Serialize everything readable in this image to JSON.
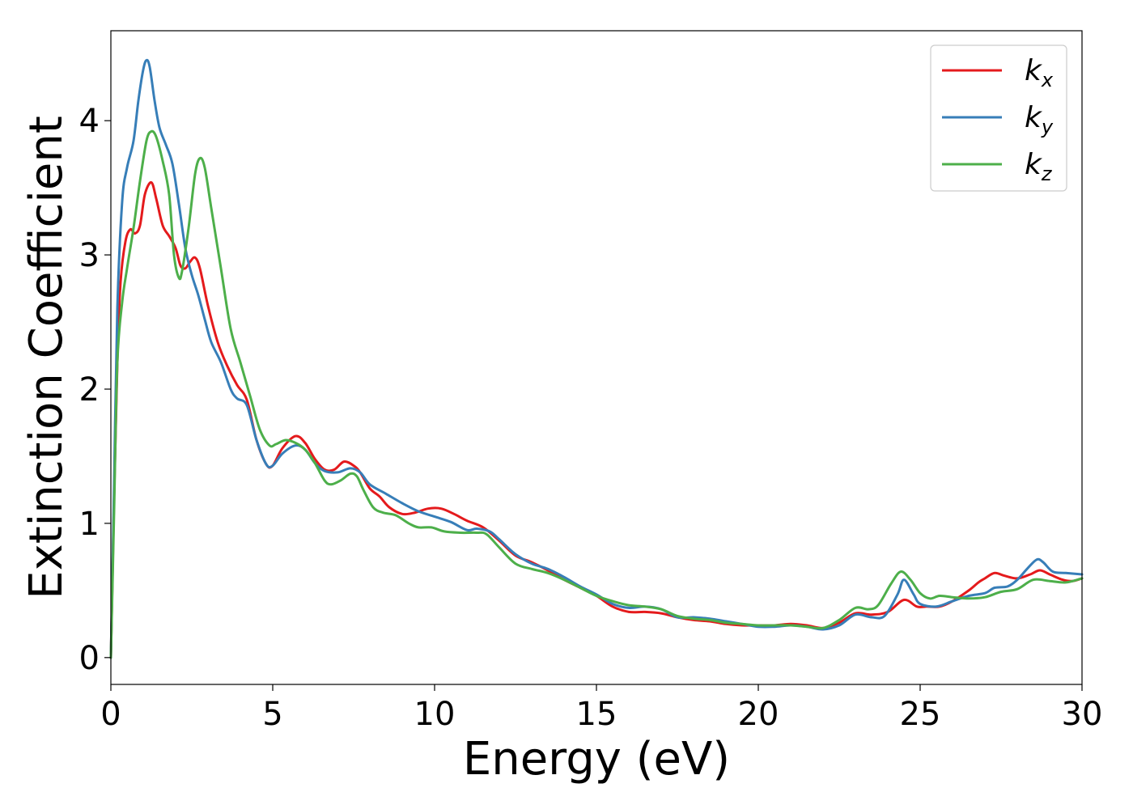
{
  "chart_data": {
    "type": "line",
    "xlabel": "Energy (eV)",
    "ylabel": "Extinction Coefficient",
    "xlim": [
      0,
      30
    ],
    "ylim": [
      -0.2,
      4.67
    ],
    "xticks": [
      0,
      5,
      10,
      15,
      20,
      25,
      30
    ],
    "yticks": [
      0,
      1,
      2,
      3,
      4
    ],
    "grid": false,
    "legend_position": "top-right",
    "series": [
      {
        "name": "k",
        "subscript": "x",
        "color": "#e41a1c",
        "points": [
          [
            0,
            0
          ],
          [
            0.1,
            1.2
          ],
          [
            0.2,
            2.2
          ],
          [
            0.3,
            2.8
          ],
          [
            0.45,
            3.1
          ],
          [
            0.6,
            3.19
          ],
          [
            0.75,
            3.16
          ],
          [
            0.9,
            3.22
          ],
          [
            1.05,
            3.45
          ],
          [
            1.25,
            3.54
          ],
          [
            1.4,
            3.42
          ],
          [
            1.6,
            3.22
          ],
          [
            1.8,
            3.14
          ],
          [
            2.0,
            3.05
          ],
          [
            2.15,
            2.92
          ],
          [
            2.3,
            2.9
          ],
          [
            2.45,
            2.95
          ],
          [
            2.6,
            2.98
          ],
          [
            2.75,
            2.9
          ],
          [
            3.0,
            2.62
          ],
          [
            3.3,
            2.35
          ],
          [
            3.6,
            2.17
          ],
          [
            3.9,
            2.03
          ],
          [
            4.2,
            1.92
          ],
          [
            4.5,
            1.62
          ],
          [
            4.8,
            1.44
          ],
          [
            5.0,
            1.43
          ],
          [
            5.3,
            1.56
          ],
          [
            5.7,
            1.65
          ],
          [
            6.0,
            1.6
          ],
          [
            6.3,
            1.48
          ],
          [
            6.6,
            1.4
          ],
          [
            6.9,
            1.4
          ],
          [
            7.2,
            1.46
          ],
          [
            7.5,
            1.43
          ],
          [
            7.7,
            1.38
          ],
          [
            8.0,
            1.26
          ],
          [
            8.3,
            1.2
          ],
          [
            8.6,
            1.12
          ],
          [
            9.0,
            1.07
          ],
          [
            9.4,
            1.08
          ],
          [
            9.8,
            1.11
          ],
          [
            10.2,
            1.11
          ],
          [
            10.6,
            1.07
          ],
          [
            11.0,
            1.02
          ],
          [
            11.5,
            0.97
          ],
          [
            12.0,
            0.87
          ],
          [
            12.5,
            0.76
          ],
          [
            13.0,
            0.71
          ],
          [
            13.5,
            0.65
          ],
          [
            14.0,
            0.58
          ],
          [
            14.5,
            0.52
          ],
          [
            15.0,
            0.46
          ],
          [
            15.5,
            0.38
          ],
          [
            16.0,
            0.34
          ],
          [
            16.5,
            0.34
          ],
          [
            17.0,
            0.33
          ],
          [
            17.5,
            0.3
          ],
          [
            18.0,
            0.28
          ],
          [
            18.5,
            0.27
          ],
          [
            19.0,
            0.25
          ],
          [
            19.5,
            0.24
          ],
          [
            20.0,
            0.24
          ],
          [
            20.5,
            0.24
          ],
          [
            21.0,
            0.25
          ],
          [
            21.5,
            0.24
          ],
          [
            22.0,
            0.22
          ],
          [
            22.5,
            0.26
          ],
          [
            23.0,
            0.33
          ],
          [
            23.5,
            0.32
          ],
          [
            24.0,
            0.34
          ],
          [
            24.5,
            0.43
          ],
          [
            24.9,
            0.38
          ],
          [
            25.2,
            0.38
          ],
          [
            25.6,
            0.38
          ],
          [
            26.0,
            0.42
          ],
          [
            26.5,
            0.5
          ],
          [
            26.8,
            0.56
          ],
          [
            27.0,
            0.59
          ],
          [
            27.3,
            0.63
          ],
          [
            27.6,
            0.61
          ],
          [
            28.0,
            0.59
          ],
          [
            28.4,
            0.62
          ],
          [
            28.7,
            0.65
          ],
          [
            29.0,
            0.62
          ],
          [
            29.4,
            0.58
          ],
          [
            29.7,
            0.57
          ],
          [
            30.0,
            0.59
          ]
        ]
      },
      {
        "name": "k",
        "subscript": "y",
        "color": "#377eb8",
        "points": [
          [
            0,
            0
          ],
          [
            0.1,
            1.3
          ],
          [
            0.2,
            2.6
          ],
          [
            0.35,
            3.4
          ],
          [
            0.5,
            3.65
          ],
          [
            0.7,
            3.85
          ],
          [
            0.85,
            4.15
          ],
          [
            1.0,
            4.38
          ],
          [
            1.1,
            4.45
          ],
          [
            1.2,
            4.4
          ],
          [
            1.35,
            4.15
          ],
          [
            1.5,
            3.95
          ],
          [
            1.7,
            3.82
          ],
          [
            1.9,
            3.68
          ],
          [
            2.1,
            3.38
          ],
          [
            2.3,
            3.05
          ],
          [
            2.5,
            2.85
          ],
          [
            2.7,
            2.7
          ],
          [
            2.9,
            2.52
          ],
          [
            3.1,
            2.35
          ],
          [
            3.4,
            2.2
          ],
          [
            3.7,
            2.0
          ],
          [
            3.9,
            1.93
          ],
          [
            4.2,
            1.88
          ],
          [
            4.5,
            1.62
          ],
          [
            4.8,
            1.44
          ],
          [
            5.0,
            1.43
          ],
          [
            5.3,
            1.52
          ],
          [
            5.7,
            1.58
          ],
          [
            6.0,
            1.55
          ],
          [
            6.3,
            1.45
          ],
          [
            6.6,
            1.39
          ],
          [
            7.0,
            1.38
          ],
          [
            7.4,
            1.41
          ],
          [
            7.7,
            1.38
          ],
          [
            8.0,
            1.29
          ],
          [
            8.5,
            1.22
          ],
          [
            9.0,
            1.15
          ],
          [
            9.5,
            1.09
          ],
          [
            10.0,
            1.05
          ],
          [
            10.5,
            1.01
          ],
          [
            11.0,
            0.95
          ],
          [
            11.3,
            0.96
          ],
          [
            11.7,
            0.94
          ],
          [
            12.0,
            0.88
          ],
          [
            12.5,
            0.77
          ],
          [
            13.0,
            0.7
          ],
          [
            13.5,
            0.66
          ],
          [
            14.0,
            0.6
          ],
          [
            14.5,
            0.53
          ],
          [
            15.0,
            0.47
          ],
          [
            15.5,
            0.4
          ],
          [
            16.0,
            0.37
          ],
          [
            16.5,
            0.38
          ],
          [
            17.0,
            0.36
          ],
          [
            17.5,
            0.3
          ],
          [
            18.0,
            0.3
          ],
          [
            18.5,
            0.29
          ],
          [
            19.0,
            0.27
          ],
          [
            19.5,
            0.25
          ],
          [
            20.0,
            0.23
          ],
          [
            20.5,
            0.23
          ],
          [
            21.0,
            0.24
          ],
          [
            21.5,
            0.23
          ],
          [
            22.0,
            0.21
          ],
          [
            22.5,
            0.24
          ],
          [
            23.0,
            0.32
          ],
          [
            23.5,
            0.3
          ],
          [
            23.9,
            0.31
          ],
          [
            24.3,
            0.47
          ],
          [
            24.5,
            0.58
          ],
          [
            24.8,
            0.47
          ],
          [
            25.0,
            0.4
          ],
          [
            25.5,
            0.38
          ],
          [
            26.0,
            0.42
          ],
          [
            26.5,
            0.46
          ],
          [
            27.0,
            0.48
          ],
          [
            27.3,
            0.52
          ],
          [
            27.7,
            0.53
          ],
          [
            28.0,
            0.58
          ],
          [
            28.3,
            0.66
          ],
          [
            28.6,
            0.73
          ],
          [
            28.8,
            0.71
          ],
          [
            29.1,
            0.64
          ],
          [
            29.5,
            0.63
          ],
          [
            30.0,
            0.62
          ]
        ]
      },
      {
        "name": "k",
        "subscript": "z",
        "color": "#4daf4a",
        "points": [
          [
            0,
            0
          ],
          [
            0.1,
            1.1
          ],
          [
            0.2,
            2.2
          ],
          [
            0.35,
            2.65
          ],
          [
            0.5,
            2.9
          ],
          [
            0.7,
            3.2
          ],
          [
            0.9,
            3.55
          ],
          [
            1.1,
            3.85
          ],
          [
            1.25,
            3.92
          ],
          [
            1.4,
            3.88
          ],
          [
            1.6,
            3.7
          ],
          [
            1.8,
            3.45
          ],
          [
            1.95,
            3.0
          ],
          [
            2.1,
            2.83
          ],
          [
            2.2,
            2.88
          ],
          [
            2.4,
            3.2
          ],
          [
            2.6,
            3.6
          ],
          [
            2.75,
            3.72
          ],
          [
            2.9,
            3.65
          ],
          [
            3.1,
            3.35
          ],
          [
            3.4,
            2.9
          ],
          [
            3.7,
            2.45
          ],
          [
            4.0,
            2.2
          ],
          [
            4.3,
            1.95
          ],
          [
            4.6,
            1.7
          ],
          [
            4.9,
            1.58
          ],
          [
            5.1,
            1.59
          ],
          [
            5.4,
            1.62
          ],
          [
            5.7,
            1.6
          ],
          [
            6.0,
            1.55
          ],
          [
            6.3,
            1.45
          ],
          [
            6.6,
            1.32
          ],
          [
            6.8,
            1.29
          ],
          [
            7.1,
            1.32
          ],
          [
            7.4,
            1.37
          ],
          [
            7.6,
            1.35
          ],
          [
            7.8,
            1.25
          ],
          [
            8.1,
            1.12
          ],
          [
            8.4,
            1.08
          ],
          [
            8.8,
            1.06
          ],
          [
            9.2,
            1.0
          ],
          [
            9.5,
            0.97
          ],
          [
            9.9,
            0.97
          ],
          [
            10.3,
            0.94
          ],
          [
            10.8,
            0.93
          ],
          [
            11.3,
            0.93
          ],
          [
            11.6,
            0.92
          ],
          [
            12.0,
            0.82
          ],
          [
            12.5,
            0.7
          ],
          [
            13.0,
            0.66
          ],
          [
            13.5,
            0.63
          ],
          [
            14.0,
            0.58
          ],
          [
            14.5,
            0.52
          ],
          [
            15.0,
            0.46
          ],
          [
            15.5,
            0.42
          ],
          [
            16.0,
            0.39
          ],
          [
            16.5,
            0.38
          ],
          [
            17.0,
            0.36
          ],
          [
            17.5,
            0.31
          ],
          [
            18.0,
            0.29
          ],
          [
            18.5,
            0.28
          ],
          [
            19.0,
            0.26
          ],
          [
            19.5,
            0.25
          ],
          [
            20.0,
            0.24
          ],
          [
            20.5,
            0.24
          ],
          [
            21.0,
            0.24
          ],
          [
            21.5,
            0.23
          ],
          [
            22.0,
            0.22
          ],
          [
            22.5,
            0.28
          ],
          [
            23.0,
            0.37
          ],
          [
            23.4,
            0.36
          ],
          [
            23.7,
            0.39
          ],
          [
            24.1,
            0.55
          ],
          [
            24.4,
            0.64
          ],
          [
            24.7,
            0.58
          ],
          [
            25.0,
            0.48
          ],
          [
            25.3,
            0.44
          ],
          [
            25.6,
            0.46
          ],
          [
            26.0,
            0.45
          ],
          [
            26.5,
            0.44
          ],
          [
            27.0,
            0.45
          ],
          [
            27.5,
            0.49
          ],
          [
            28.0,
            0.51
          ],
          [
            28.5,
            0.58
          ],
          [
            29.0,
            0.57
          ],
          [
            29.5,
            0.56
          ],
          [
            30.0,
            0.59
          ]
        ]
      }
    ]
  }
}
